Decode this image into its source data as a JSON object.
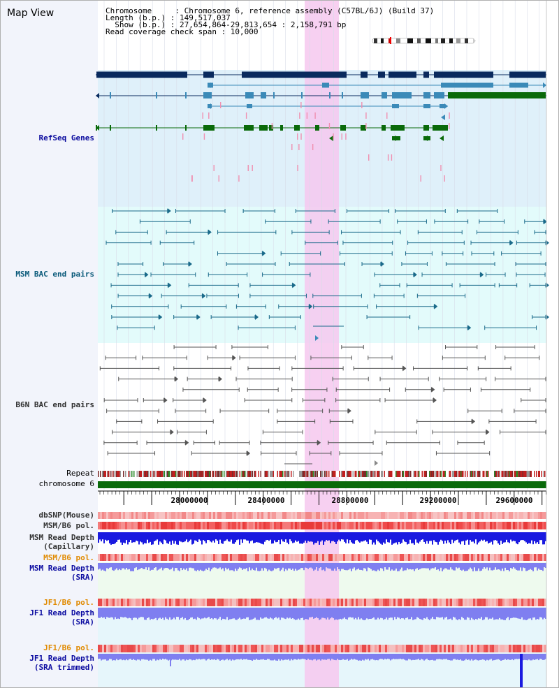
{
  "header": {
    "title": "Map View",
    "info_lines": [
      "Chromosome     : Chromosome 6, reference assembly (C57BL/6J) (Build 37)",
      "Length (b.p.) : 149,517,037",
      "  Show (b.p.) : 27,654,864-29,813,654 : 2,158,791 bp",
      "Read coverage check span : 10,000"
    ]
  },
  "tracks": {
    "refseq": {
      "label": "RefSeq Genes",
      "color": "#0a0a9e"
    },
    "msm_bac": {
      "label": "MSM BAC end pairs",
      "color": "#0a5a7a"
    },
    "b6n_bac": {
      "label": "B6N BAC end pairs",
      "color": "#303030"
    },
    "repeat": {
      "label": "Repeat"
    },
    "chromosome": {
      "label": "chromosome 6"
    },
    "dbsnp": {
      "label": "dbSNP(Mouse)"
    },
    "msm_b6_pol": {
      "label": "MSM/B6 pol."
    },
    "msm_read_depth_cap": {
      "label1": "MSM Read Depth",
      "label2": "(Capillary)"
    },
    "msm_b6_pol_sra": {
      "label": "MSM/B6 pol."
    },
    "msm_read_depth_sra": {
      "label1": "MSM Read Depth",
      "label2": "(SRA)"
    },
    "jf1_b6_pol": {
      "label": "JF1/B6 pol."
    },
    "jf1_read_depth_sra": {
      "label1": "JF1 Read Depth",
      "label2": "(SRA)"
    },
    "jf1_b6_pol_trim": {
      "label": "JF1/B6 pol."
    },
    "jf1_read_depth_trim": {
      "label1": "JF1 Read Depth",
      "label2": "(SRA trimmed)"
    }
  },
  "ruler": {
    "ticks": [
      "28000000",
      "28400000",
      "28800000",
      "29200000",
      "29600000"
    ]
  },
  "colors": {
    "highlight": "#f6c8ef",
    "refseq_bg": "#dff0fa",
    "msm_bg": "#e3fbfb",
    "b6n_bg": "#ffffff",
    "dark_blue": "#0a2a5e",
    "mid_blue": "#3b8ab8",
    "green": "#0a6a0a",
    "depth_blue": "#1a1ae0",
    "depth_light": "#7f7ff0",
    "orange_label": "#e08a00",
    "blue_label": "#0a0aa0"
  }
}
